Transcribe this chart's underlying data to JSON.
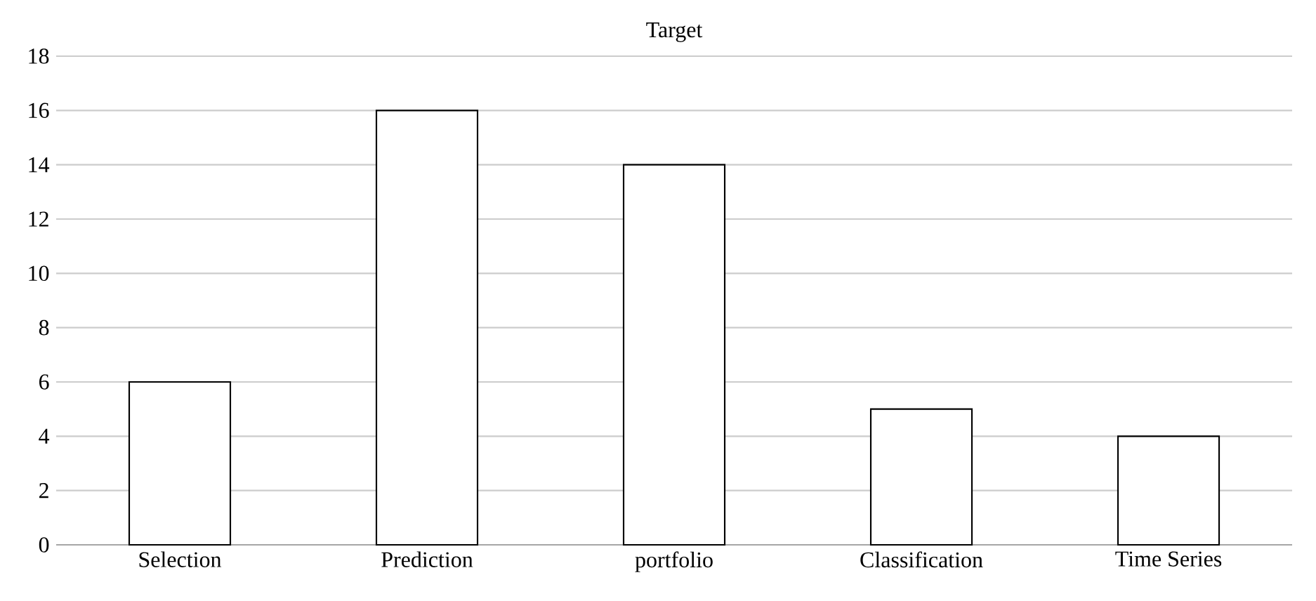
{
  "chart_data": {
    "type": "bar",
    "title": "Target",
    "categories": [
      "Selection",
      "Prediction",
      "portfolio",
      "Classification",
      "Time Series"
    ],
    "values": [
      6,
      16,
      14,
      5,
      4
    ],
    "color": "#000000",
    "ylim": [
      0,
      18
    ],
    "yticks": [
      0,
      2,
      4,
      6,
      8,
      10,
      12,
      14,
      16,
      18
    ],
    "grid": "y"
  }
}
